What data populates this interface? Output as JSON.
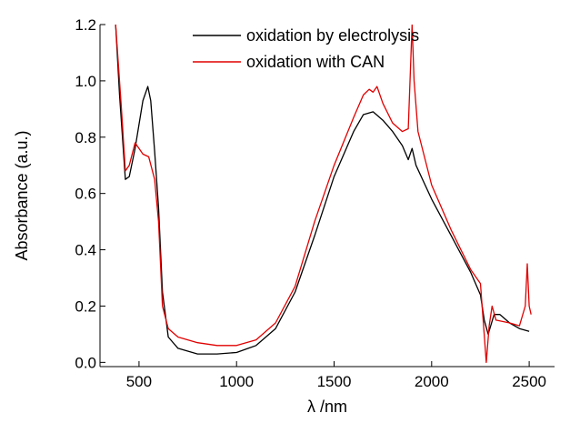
{
  "chart_data": {
    "type": "line",
    "x_label": "λ /nm",
    "y_label": "Absorbance (a.u.)",
    "xlim": [
      300,
      2630
    ],
    "ylim": [
      -0.015,
      1.2
    ],
    "xticks": [
      500,
      1000,
      1500,
      2000,
      2500
    ],
    "yticks": [
      {
        "value": 0,
        "label": "0.0"
      },
      0.2,
      0.4,
      0.6,
      0.8,
      {
        "value": 1,
        "label": "1.0"
      },
      1.2
    ],
    "legend": "upper center",
    "series": [
      {
        "name": "oxidation by electrolysis",
        "color": "#000000",
        "x": [
          380,
          400,
          430,
          450,
          480,
          520,
          545,
          560,
          580,
          600,
          620,
          650,
          700,
          800,
          900,
          1000,
          1100,
          1200,
          1300,
          1400,
          1500,
          1600,
          1650,
          1700,
          1750,
          1800,
          1850,
          1880,
          1900,
          1920,
          2000,
          2100,
          2200,
          2250,
          2270,
          2290,
          2320,
          2350,
          2400,
          2450,
          2500
        ],
        "values": [
          1.2,
          0.95,
          0.65,
          0.66,
          0.76,
          0.93,
          0.98,
          0.93,
          0.75,
          0.55,
          0.25,
          0.09,
          0.05,
          0.03,
          0.03,
          0.035,
          0.06,
          0.12,
          0.25,
          0.45,
          0.66,
          0.82,
          0.88,
          0.89,
          0.86,
          0.82,
          0.77,
          0.72,
          0.76,
          0.7,
          0.58,
          0.45,
          0.32,
          0.24,
          0.15,
          0.1,
          0.17,
          0.17,
          0.14,
          0.12,
          0.11
        ]
      },
      {
        "name": "oxidation with CAN",
        "color": "#e00000",
        "x": [
          380,
          410,
          430,
          450,
          480,
          520,
          550,
          580,
          600,
          620,
          650,
          700,
          800,
          900,
          1000,
          1100,
          1200,
          1300,
          1400,
          1500,
          1600,
          1650,
          1680,
          1700,
          1720,
          1750,
          1800,
          1850,
          1880,
          1900,
          1910,
          1930,
          2000,
          2100,
          2200,
          2250,
          2265,
          2280,
          2295,
          2310,
          2330,
          2400,
          2450,
          2480,
          2490,
          2500,
          2510
        ],
        "values": [
          1.2,
          0.9,
          0.68,
          0.7,
          0.78,
          0.74,
          0.73,
          0.65,
          0.5,
          0.2,
          0.12,
          0.09,
          0.07,
          0.06,
          0.06,
          0.08,
          0.14,
          0.27,
          0.5,
          0.7,
          0.87,
          0.95,
          0.97,
          0.96,
          0.98,
          0.92,
          0.85,
          0.82,
          0.83,
          1.2,
          1.0,
          0.82,
          0.63,
          0.47,
          0.33,
          0.28,
          0.14,
          0,
          0.13,
          0.2,
          0.15,
          0.14,
          0.13,
          0.2,
          0.35,
          0.2,
          0.17
        ]
      }
    ]
  }
}
